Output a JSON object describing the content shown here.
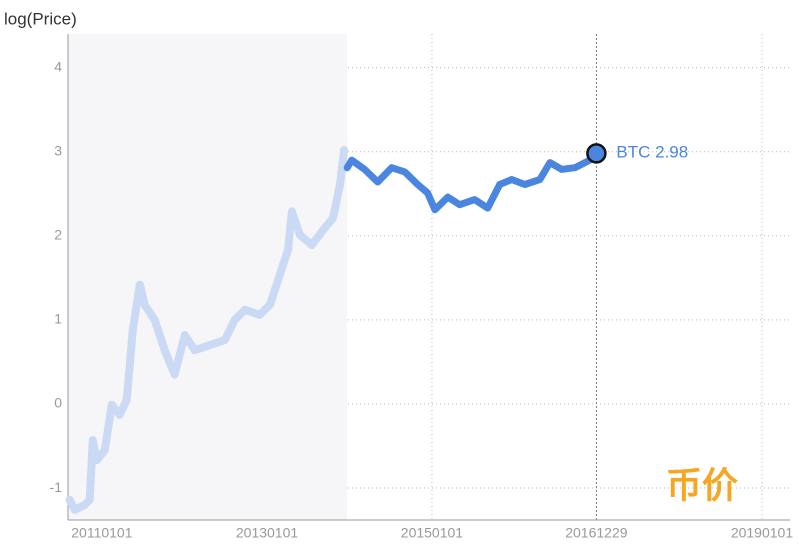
{
  "chart_data": {
    "type": "line",
    "title": "币价",
    "y_label": "log(Price)",
    "x": [
      "20100811",
      "20100903",
      "20101017",
      "20101108",
      "20101122",
      "20101209",
      "20110114",
      "20110214",
      "20110321",
      "20110421",
      "20110518",
      "20110618",
      "20110709",
      "20110823",
      "20111006",
      "20111119",
      "20120103",
      "20120216",
      "20120423",
      "20120628",
      "20120811",
      "20120925",
      "20121130",
      "20130114",
      "20130227",
      "20130404",
      "20130421",
      "20130527",
      "20130718",
      "20130901",
      "20131020",
      "20131120",
      "20131208",
      "20131222",
      "20140111",
      "20140309",
      "20140506",
      "20140707",
      "20140903",
      "20141030",
      "20141213",
      "20150114",
      "20150312",
      "20150504",
      "20150709",
      "20150905",
      "20151028",
      "20151220",
      "20160216",
      "20160423",
      "20160606",
      "20160729",
      "20160925",
      "20161130",
      "20161229"
    ],
    "series": [
      {
        "name": "BTC",
        "color": "#4a86e0",
        "faded_color": "#cbdaf4",
        "values": [
          -1.14,
          -1.26,
          -1.2,
          -1.14,
          -0.43,
          -0.67,
          -0.55,
          -0.01,
          -0.13,
          0.05,
          0.88,
          1.42,
          1.18,
          1.0,
          0.64,
          0.35,
          0.82,
          0.64,
          0.7,
          0.76,
          1.0,
          1.12,
          1.06,
          1.18,
          1.54,
          1.83,
          2.29,
          2.01,
          1.89,
          2.05,
          2.21,
          2.61,
          3.02,
          2.81,
          2.9,
          2.79,
          2.64,
          2.81,
          2.76,
          2.61,
          2.51,
          2.31,
          2.46,
          2.37,
          2.43,
          2.33,
          2.61,
          2.67,
          2.61,
          2.67,
          2.87,
          2.79,
          2.81,
          2.9,
          2.98
        ]
      }
    ],
    "shade_end": "20131221",
    "highlight_x": "20161229",
    "xlim": [
      "20100804",
      "20190505"
    ],
    "xticks": [
      "20110101",
      "20130101",
      "20150101",
      "20161229",
      "20190101"
    ],
    "ylim": [
      -1.38,
      4.4
    ],
    "yticks": [
      -1,
      0,
      1,
      2,
      3,
      4
    ],
    "grid": true,
    "title_color": "#f5a623"
  }
}
